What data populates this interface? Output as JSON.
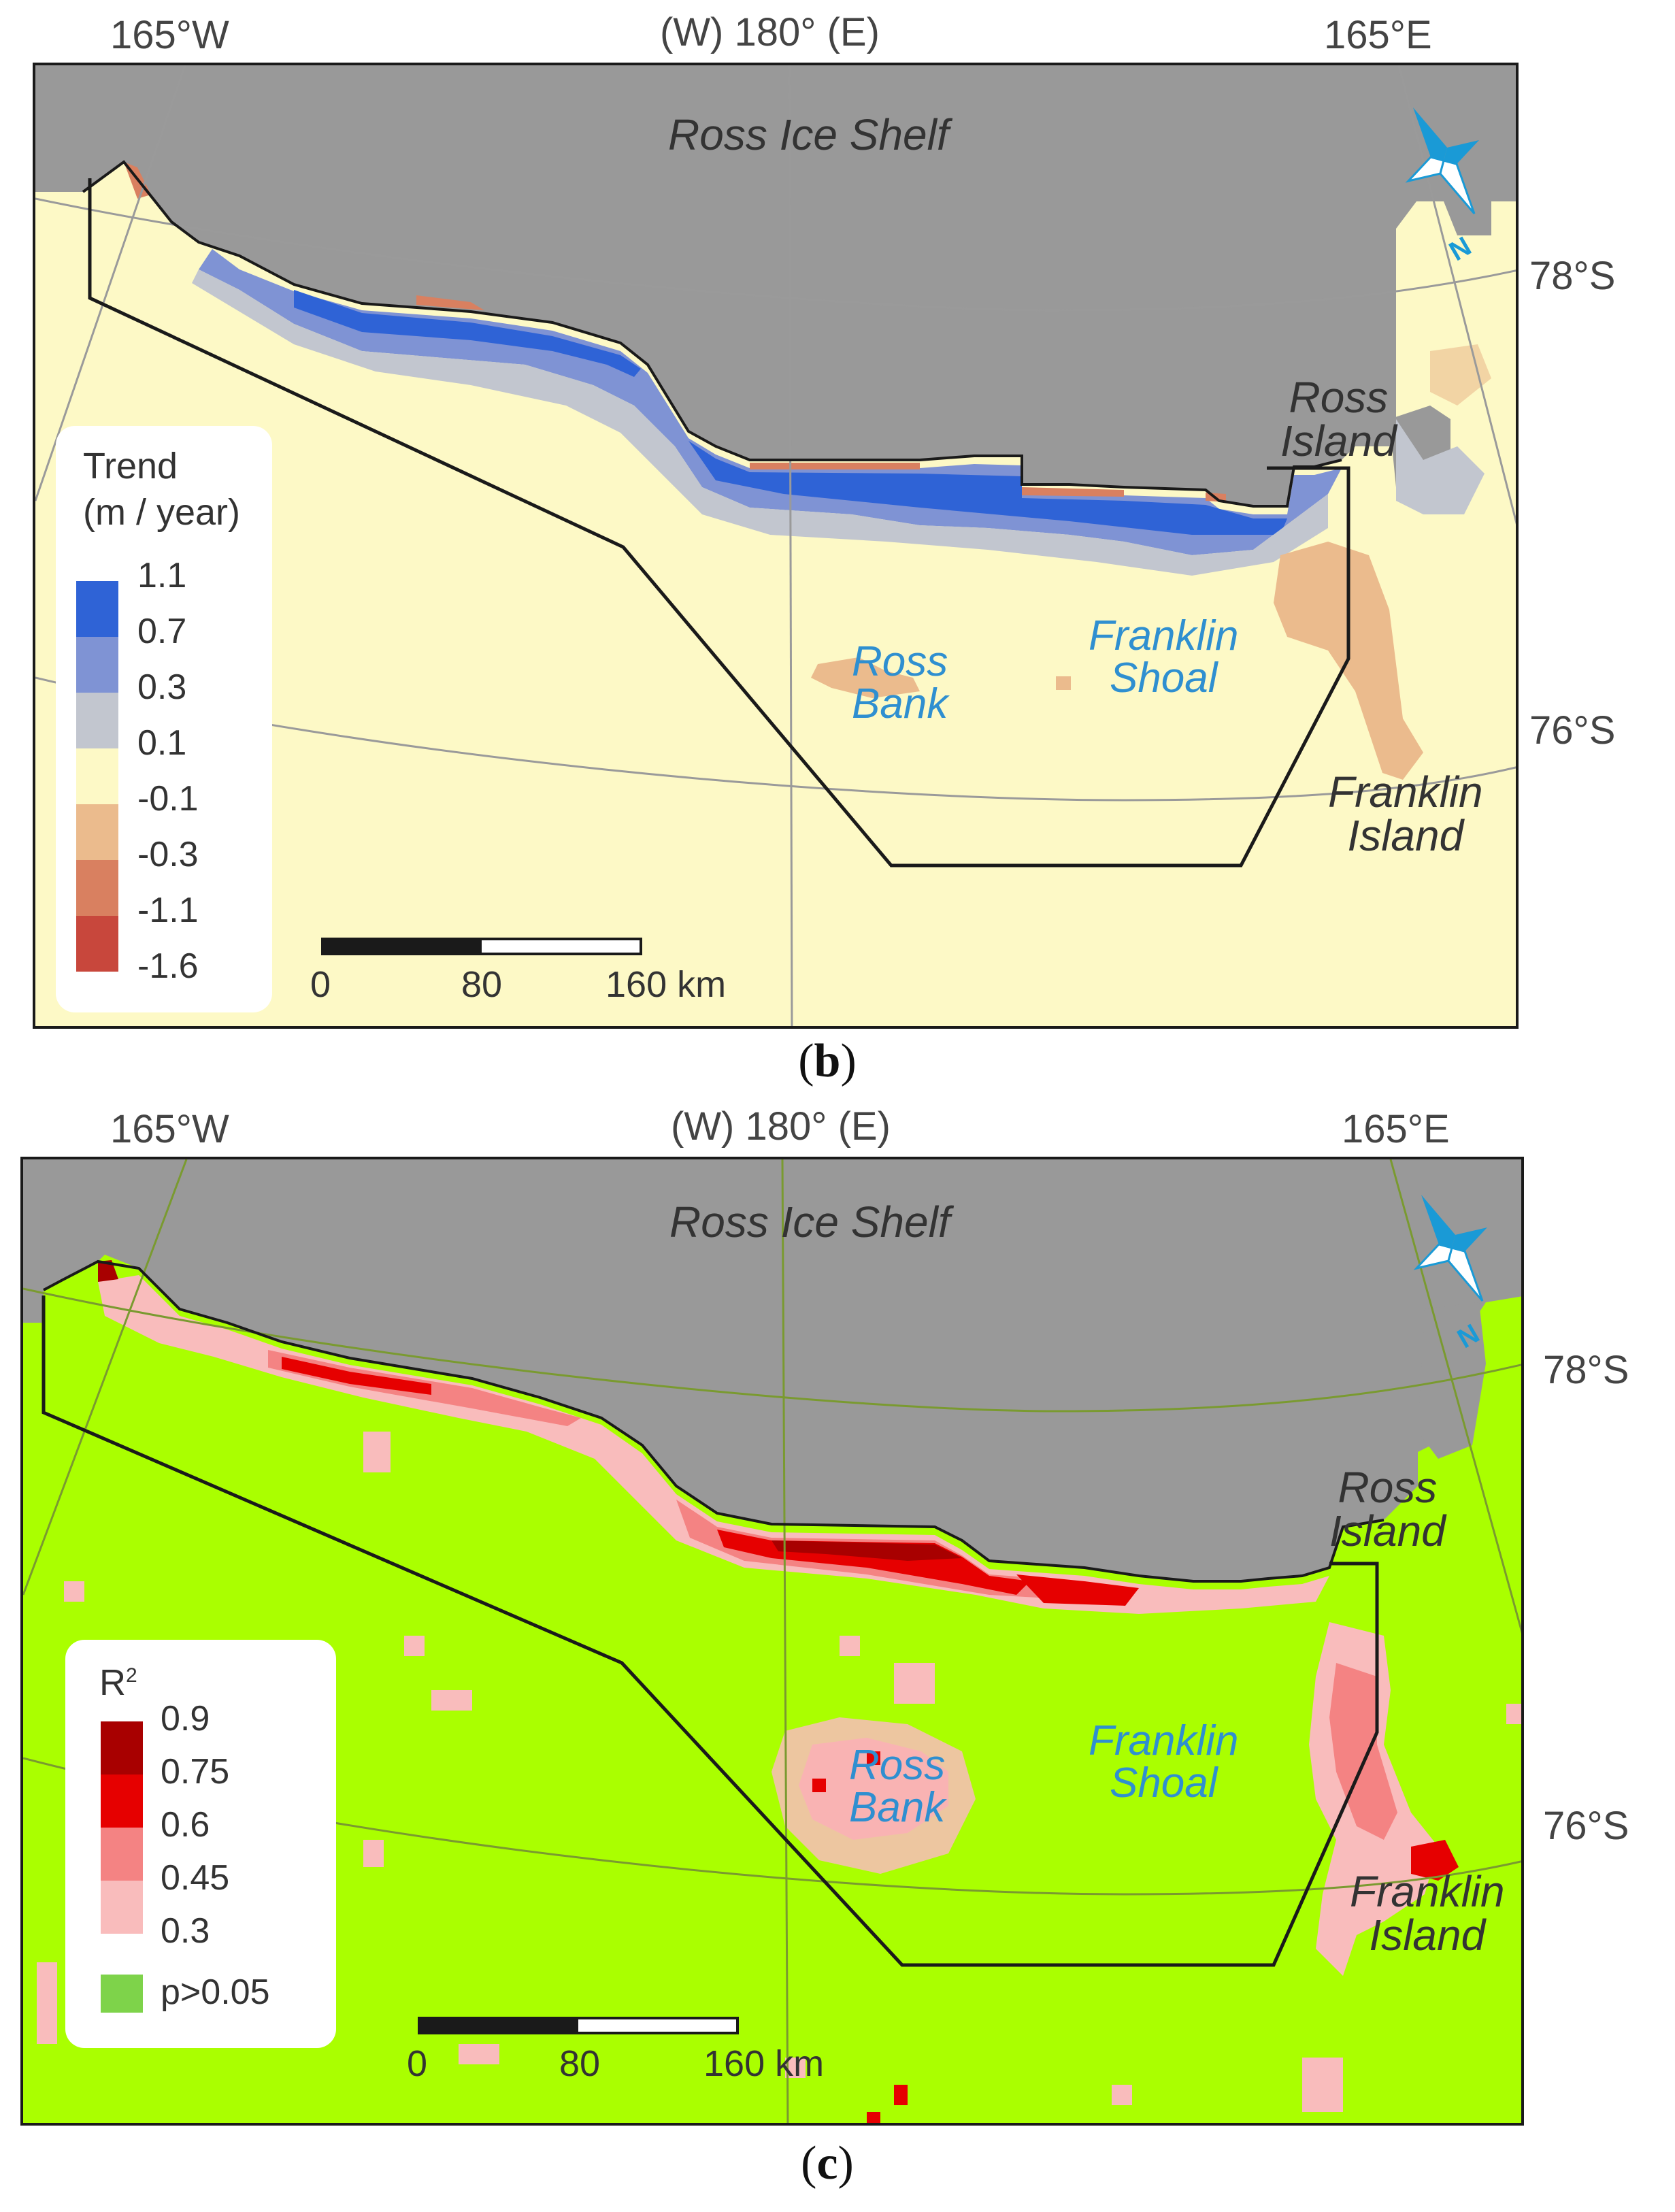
{
  "panels": [
    {
      "caption_open": "(",
      "caption_letter": "b",
      "caption_close": ")",
      "lon_labels": [
        "165°W",
        "(W) 180° (E)",
        "165°E"
      ],
      "lat_labels": [
        "78°S",
        "76°S"
      ],
      "places": {
        "ice_shelf": "Ross Ice Shelf",
        "ross_island": [
          "Ross",
          "Island"
        ],
        "franklin_island": [
          "Franklin",
          "Island"
        ],
        "ross_bank": [
          "Ross",
          "Bank"
        ],
        "franklin_shoal": [
          "Franklin",
          "Shoal"
        ]
      },
      "north_label": "N",
      "legend": {
        "title_line1": "Trend",
        "title_line2": "(m / year)",
        "classes": [
          {
            "label": "1.1",
            "color": "#2f63d6"
          },
          {
            "label": "0.7",
            "color": "#7f93d4"
          },
          {
            "label": "0.3",
            "color": "#c2c6cf"
          },
          {
            "label": "0.1",
            "color": "#fdf9c6"
          },
          {
            "label": "-0.1",
            "color": "#ebbb8d"
          },
          {
            "label": "-0.3",
            "color": "#d98060"
          },
          {
            "label": "-1.1",
            "color": "#c8473c"
          },
          {
            "label": "-1.6",
            "color": ""
          }
        ]
      },
      "scale": {
        "labels": [
          "0",
          "80",
          "160 km"
        ]
      },
      "colors": {
        "land": "#999999",
        "background": "#fdf9c6",
        "outline": "#1a1a1a"
      }
    },
    {
      "caption_open": "(",
      "caption_letter": "c",
      "caption_close": ")",
      "lon_labels": [
        "165°W",
        "(W) 180° (E)",
        "165°E"
      ],
      "lat_labels": [
        "78°S",
        "76°S"
      ],
      "places": {
        "ice_shelf": "Ross Ice Shelf",
        "ross_island": [
          "Ross",
          "Island"
        ],
        "franklin_island": [
          "Franklin",
          "Island"
        ],
        "ross_bank": [
          "Ross",
          "Bank"
        ],
        "franklin_shoal": [
          "Franklin",
          "Shoal"
        ]
      },
      "north_label": "N",
      "legend": {
        "title": "R",
        "title_sup": "2",
        "classes": [
          {
            "label": "0.9",
            "color": "#a80000"
          },
          {
            "label": "0.75",
            "color": "#e60000"
          },
          {
            "label": "0.6",
            "color": "#f48383"
          },
          {
            "label": "0.45",
            "color": "#f9bcbc"
          },
          {
            "label": "0.3",
            "color": ""
          }
        ],
        "nonsig": {
          "label": "p>0.05",
          "color": "#7ed34a"
        }
      },
      "scale": {
        "labels": [
          "0",
          "80",
          "160 km"
        ]
      },
      "colors": {
        "land": "#999999",
        "background": "#aaff00",
        "outline": "#1a1a1a"
      }
    }
  ]
}
